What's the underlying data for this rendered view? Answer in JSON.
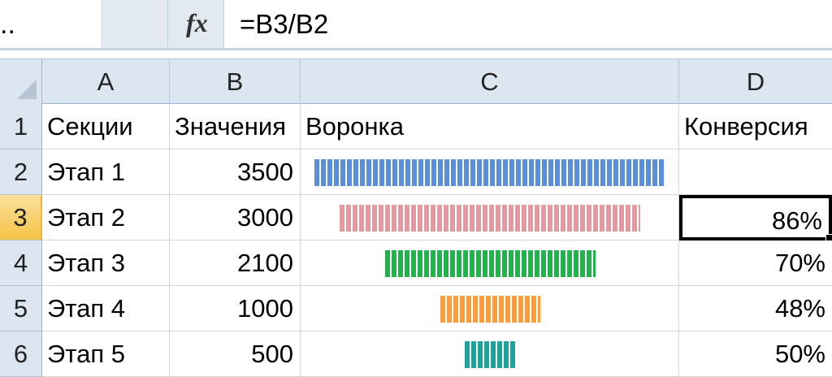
{
  "formula_bar": {
    "name_box": "..",
    "fx_label": "fx",
    "formula": "=B3/B2"
  },
  "columns": [
    {
      "label": "",
      "selected": false
    },
    {
      "label": "A",
      "selected": false
    },
    {
      "label": "B",
      "selected": false
    },
    {
      "label": "C",
      "selected": false
    },
    {
      "label": "D",
      "selected": true
    }
  ],
  "rows": [
    {
      "num": "1",
      "a": "Секции",
      "b": "Значения",
      "c": "Воронка",
      "d": "Конверсия",
      "selected": false
    },
    {
      "num": "2",
      "a": "Этап 1",
      "b": "3500",
      "c": "",
      "d": "",
      "selected": false
    },
    {
      "num": "3",
      "a": "Этап 2",
      "b": "3000",
      "c": "",
      "d": "86%",
      "selected": true
    },
    {
      "num": "4",
      "a": "Этап 3",
      "b": "2100",
      "c": "",
      "d": "70%",
      "selected": false
    },
    {
      "num": "5",
      "a": "Этап 4",
      "b": "1000",
      "c": "",
      "d": "48%",
      "selected": false
    },
    {
      "num": "6",
      "a": "Этап 5",
      "b": "500",
      "c": "",
      "d": "50%",
      "selected": false
    }
  ],
  "funnel": {
    "max_value": 3500,
    "bars": [
      {
        "value": 3500,
        "color": "#5b8fd9"
      },
      {
        "value": 3000,
        "color": "#e19a9f"
      },
      {
        "value": 2100,
        "color": "#25b04e"
      },
      {
        "value": 1000,
        "color": "#fa9d3c"
      },
      {
        "value": 500,
        "color": "#1ea39b"
      }
    ]
  },
  "active_cell": "D3"
}
